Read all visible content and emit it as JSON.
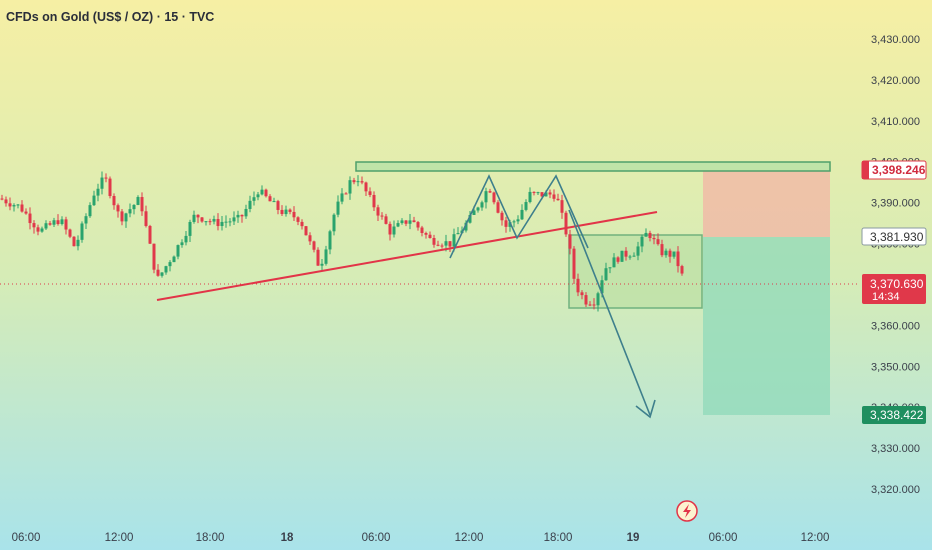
{
  "header": {
    "symbol_title": "CFDs on Gold (US$ / OZ) · 15 · TVC"
  },
  "chart_data": {
    "type": "candlestick",
    "title": "CFDs on Gold (US$ / OZ) · 15 · TVC",
    "ylim": [
      3315,
      3435
    ],
    "y_ticks": [
      3320,
      3330,
      3340,
      3350,
      3360,
      3370,
      3380,
      3390,
      3400,
      3410,
      3420,
      3430
    ],
    "y_tick_labels": [
      "3,320.000",
      "3,330.000",
      "3,340.000",
      "3,350.000",
      "3,360.000",
      "3,370.000",
      "3,380.000",
      "3,390.000",
      "3,400.000",
      "3,410.000",
      "3,420.000",
      "3,430.000"
    ],
    "x_ticks": [
      "06:00",
      "12:00",
      "18:00",
      "18",
      "06:00",
      "12:00",
      "18:00",
      "19",
      "06:00",
      "12:00"
    ],
    "price_labels": {
      "stop_level": "3,398.246",
      "entry_level": "3,381.930",
      "current_price": "3,370.630",
      "countdown": "14:34",
      "target_level": "3,338.422"
    },
    "levels": {
      "stop": 3398.246,
      "entry": 3381.93,
      "current": 3370.63,
      "target": 3338.422
    },
    "trendline": [
      [
        3363.5,
        3387.5
      ]
    ],
    "resistance_zone": [
      3397.5,
      3399.5
    ],
    "consolidation_box": [
      3364.5,
      3382
    ]
  },
  "colors": {
    "bg_top": "#f6efa4",
    "bg_bottom": "#ade5ea",
    "up": "#2aa36d",
    "down": "#e0384a",
    "trend": "#e23448",
    "zigzag": "#3e7f8c",
    "box_border": "#5fa873",
    "box_fill": "#bde1a6",
    "stop_fill": "#f1b8a6",
    "target_fill": "#8fd9b9"
  }
}
